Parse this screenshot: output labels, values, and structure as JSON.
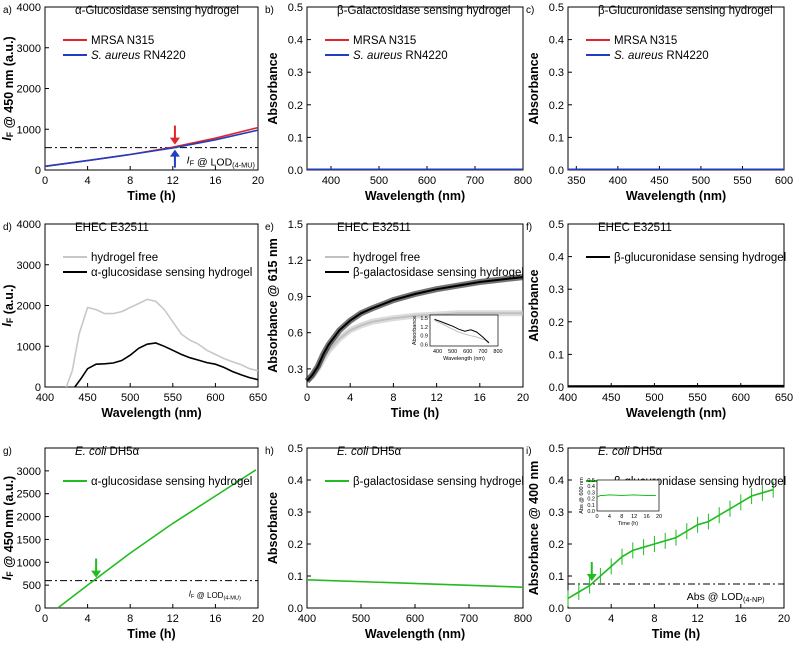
{
  "chart_data": [
    {
      "panel": "a)",
      "type": "line",
      "title": "α-Glucosidase sensing hydrogel",
      "xlabel": "Time (h)",
      "ylabel": "I_F @ 450 nm (a.u.)",
      "xlim": [
        0,
        20
      ],
      "ylim": [
        0,
        4000
      ],
      "xticks": [
        0,
        4,
        8,
        12,
        16,
        20
      ],
      "yticks": [
        0,
        1000,
        2000,
        3000,
        4000
      ],
      "legend": "top-left",
      "series": [
        {
          "name": "MRSA N315",
          "color": "#e3242b",
          "x": [
            0,
            4,
            8,
            12,
            16,
            20
          ],
          "y": [
            90,
            230,
            380,
            560,
            780,
            1040
          ]
        },
        {
          "name": "S. aureus RN4220",
          "color": "#1f3fbf",
          "x": [
            0,
            4,
            8,
            12,
            16,
            20
          ],
          "y": [
            90,
            230,
            380,
            540,
            740,
            980
          ]
        }
      ],
      "reference_line": {
        "y": 550,
        "label": "I_F @ LOD(4-MU)"
      },
      "arrow_markers": [
        {
          "x": 12.2,
          "color": "#e3242b",
          "direction": "down"
        },
        {
          "x": 12.2,
          "color": "#1f3fbf",
          "direction": "up"
        }
      ]
    },
    {
      "panel": "b)",
      "type": "line",
      "title": "β-Galactosidase sensing hydrogel",
      "xlabel": "Wavelength (nm)",
      "ylabel": "Absorbance",
      "xlim": [
        350,
        800
      ],
      "ylim": [
        0,
        0.5
      ],
      "xticks": [
        400,
        500,
        600,
        700,
        800
      ],
      "yticks": [
        0.0,
        0.1,
        0.2,
        0.3,
        0.4,
        0.5
      ],
      "legend": "top-left",
      "series": [
        {
          "name": "MRSA N315",
          "color": "#e3242b",
          "x": [
            350,
            800
          ],
          "y": [
            0.002,
            0.002
          ]
        },
        {
          "name": "S. aureus RN4220",
          "color": "#1f3fbf",
          "x": [
            350,
            800
          ],
          "y": [
            0.002,
            0.002
          ]
        }
      ]
    },
    {
      "panel": "c)",
      "type": "line",
      "title": "β-Glucuronidase sensing hydrogel",
      "xlabel": "Wavelength (nm)",
      "ylabel": "Absorbance",
      "xlim": [
        340,
        600
      ],
      "ylim": [
        0,
        0.5
      ],
      "xticks": [
        350,
        400,
        450,
        500,
        550,
        600
      ],
      "yticks": [
        0.0,
        0.1,
        0.2,
        0.3,
        0.4,
        0.5
      ],
      "legend": "top-left",
      "series": [
        {
          "name": "MRSA N315",
          "color": "#e3242b",
          "x": [
            340,
            600
          ],
          "y": [
            0.002,
            0.002
          ]
        },
        {
          "name": "S. aureus RN4220",
          "color": "#1f3fbf",
          "x": [
            340,
            600
          ],
          "y": [
            0.002,
            0.002
          ]
        }
      ]
    },
    {
      "panel": "d)",
      "type": "line",
      "title": "EHEC E32511",
      "xlabel": "Wavelength (nm)",
      "ylabel": "I_F (a.u.)",
      "xlim": [
        400,
        650
      ],
      "ylim": [
        0,
        4000
      ],
      "xticks": [
        400,
        450,
        500,
        550,
        600,
        650
      ],
      "yticks": [
        0,
        1000,
        2000,
        3000,
        4000
      ],
      "legend": "top-left",
      "series": [
        {
          "name": "hydrogel free",
          "color": "#c8c8c8",
          "x": [
            425,
            432,
            440,
            450,
            460,
            470,
            480,
            490,
            500,
            510,
            520,
            530,
            540,
            550,
            560,
            570,
            580,
            590,
            600,
            610,
            620,
            630,
            640,
            650
          ],
          "y": [
            0,
            400,
            1300,
            1950,
            1900,
            1800,
            1800,
            1850,
            1950,
            2050,
            2150,
            2100,
            1900,
            1600,
            1300,
            1150,
            1050,
            900,
            800,
            700,
            620,
            550,
            450,
            400
          ]
        },
        {
          "name": "α-glucosidase sensing hydrogel",
          "color": "#000000",
          "x": [
            435,
            442,
            450,
            460,
            470,
            480,
            490,
            500,
            510,
            520,
            530,
            540,
            550,
            560,
            570,
            580,
            590,
            600,
            610,
            620,
            630,
            640,
            650
          ],
          "y": [
            0,
            200,
            450,
            560,
            570,
            590,
            650,
            780,
            950,
            1050,
            1080,
            1000,
            900,
            800,
            720,
            660,
            600,
            560,
            480,
            380,
            300,
            230,
            180
          ]
        }
      ]
    },
    {
      "panel": "e)",
      "type": "line",
      "title": "EHEC E32511",
      "xlabel": "Time (h)",
      "ylabel": "Absorbance @ 615 nm",
      "xlim": [
        0,
        20
      ],
      "ylim": [
        0.15,
        1.5
      ],
      "xticks": [
        0,
        4,
        8,
        12,
        16,
        20
      ],
      "yticks": [
        0.3,
        0.6,
        0.9,
        1.2,
        1.5
      ],
      "legend": "top-left",
      "series": [
        {
          "name": "hydrogel free",
          "color": "#c0c0c0",
          "x": [
            0,
            0.5,
            1,
            1.5,
            2,
            3,
            4,
            5,
            6,
            8,
            10,
            12,
            14,
            16,
            18,
            20
          ],
          "y": [
            0.2,
            0.24,
            0.3,
            0.38,
            0.45,
            0.55,
            0.62,
            0.66,
            0.69,
            0.72,
            0.74,
            0.75,
            0.76,
            0.76,
            0.76,
            0.76
          ]
        },
        {
          "name": "β-galactosidase sensing hydrogel",
          "color": "#000000",
          "x": [
            0,
            0.5,
            1,
            1.5,
            2,
            3,
            4,
            5,
            6,
            8,
            10,
            12,
            14,
            16,
            18,
            20
          ],
          "y": [
            0.2,
            0.25,
            0.32,
            0.42,
            0.5,
            0.62,
            0.7,
            0.76,
            0.8,
            0.87,
            0.92,
            0.96,
            0.99,
            1.02,
            1.04,
            1.06
          ]
        }
      ],
      "inset": {
        "type": "line",
        "xlabel": "Wavelength (nm)",
        "ylabel": "Absorbance",
        "xlim": [
          350,
          800
        ],
        "ylim": [
          0.55,
          1.6
        ],
        "xticks": [
          400,
          500,
          600,
          700,
          800
        ],
        "yticks": [
          0.6,
          0.9,
          1.2,
          1.5
        ],
        "series": [
          {
            "name": "hydrogel free",
            "color": "#c0c0c0",
            "x": [
              380,
              420,
              460,
              500,
              540,
              580,
              620,
              660,
              700,
              740
            ],
            "y": [
              1.42,
              1.32,
              1.22,
              1.12,
              1.02,
              0.95,
              0.9,
              0.85,
              0.78,
              0.7
            ]
          },
          {
            "name": "β-galactosidase sensing hydrogel",
            "color": "#000000",
            "x": [
              380,
              420,
              460,
              500,
              540,
              580,
              620,
              660,
              700,
              740
            ],
            "y": [
              1.45,
              1.38,
              1.3,
              1.22,
              1.12,
              1.05,
              1.1,
              1.02,
              0.85,
              0.65
            ]
          }
        ]
      }
    },
    {
      "panel": "f)",
      "type": "line",
      "title": "EHEC E32511",
      "xlabel": "Wavelength (nm)",
      "ylabel": "Absorbance",
      "xlim": [
        400,
        650
      ],
      "ylim": [
        0,
        0.5
      ],
      "xticks": [
        400,
        450,
        500,
        550,
        600,
        650
      ],
      "yticks": [
        0.0,
        0.1,
        0.2,
        0.3,
        0.4,
        0.5
      ],
      "legend": "top-left",
      "series": [
        {
          "name": "β-glucuronidase sensing hydrogel",
          "color": "#000000",
          "x": [
            400,
            650
          ],
          "y": [
            0.003,
            0.004
          ]
        }
      ]
    },
    {
      "panel": "g)",
      "type": "line",
      "title": "E. coli DH5α",
      "xlabel": "Time (h)",
      "ylabel": "I_F @ 450 nm (a.u.)",
      "xlim": [
        0,
        20
      ],
      "ylim": [
        0,
        3500
      ],
      "xticks": [
        0,
        4,
        8,
        12,
        16,
        20
      ],
      "yticks": [
        0,
        500,
        1000,
        1500,
        2000,
        2500,
        3000
      ],
      "legend": "top-left",
      "series": [
        {
          "name": "α-glucosidase sensing hydrogel",
          "color": "#22bb22",
          "x": [
            1.2,
            4,
            8,
            12,
            16,
            19.8
          ],
          "y": [
            0,
            500,
            1200,
            1850,
            2450,
            3020
          ]
        }
      ],
      "reference_line": {
        "y": 600,
        "label": "I_F @ LOD(4-MU)"
      },
      "arrow_markers": [
        {
          "x": 4.8,
          "color": "#22bb22",
          "direction": "down"
        }
      ]
    },
    {
      "panel": "h)",
      "type": "line",
      "title": "E. coli DH5α",
      "xlabel": "Wavelength (nm)",
      "ylabel": "Absorbance",
      "xlim": [
        400,
        800
      ],
      "ylim": [
        0,
        0.5
      ],
      "xticks": [
        400,
        500,
        600,
        700,
        800
      ],
      "yticks": [
        0.0,
        0.1,
        0.2,
        0.3,
        0.4,
        0.5
      ],
      "legend": "top-left",
      "series": [
        {
          "name": "β-galactosidase sensing hydrogel",
          "color": "#22bb22",
          "x": [
            400,
            800
          ],
          "y": [
            0.088,
            0.065
          ]
        }
      ]
    },
    {
      "panel": "i)",
      "type": "line",
      "title": "E. coli DH5α",
      "xlabel": "Time (h)",
      "ylabel": "Absorbance @ 400 nm",
      "xlim": [
        0,
        20
      ],
      "ylim": [
        0,
        0.5
      ],
      "xticks": [
        0,
        4,
        8,
        12,
        16,
        20
      ],
      "yticks": [
        0.0,
        0.1,
        0.2,
        0.3,
        0.4,
        0.5
      ],
      "legend": "top-left",
      "series": [
        {
          "name": "β-glucuronidase sensing hydrogel",
          "color": "#22bb22",
          "x": [
            0,
            1,
            2,
            3,
            4,
            5,
            6,
            7,
            8,
            9,
            10,
            11,
            12,
            13,
            14,
            15,
            16,
            17,
            18,
            19
          ],
          "y": [
            0.03,
            0.05,
            0.07,
            0.1,
            0.13,
            0.16,
            0.18,
            0.19,
            0.2,
            0.21,
            0.22,
            0.24,
            0.26,
            0.27,
            0.29,
            0.31,
            0.33,
            0.35,
            0.36,
            0.37
          ]
        }
      ],
      "reference_line": {
        "y": 0.075,
        "label": "Abs @ LOD(4-NP)"
      },
      "arrow_markers": [
        {
          "x": 2.2,
          "color": "#22bb22",
          "direction": "down"
        }
      ],
      "inset": {
        "type": "line",
        "xlabel": "Time (h)",
        "ylabel": "Abs @ 600 nm",
        "xlim": [
          0,
          20
        ],
        "ylim": [
          0,
          0.5
        ],
        "xticks": [
          0,
          4,
          8,
          12,
          16,
          20
        ],
        "yticks": [
          0.0,
          0.1,
          0.2,
          0.3,
          0.4,
          0.5
        ],
        "series": [
          {
            "name": "β-glucuronidase sensing hydrogel",
            "color": "#22bb22",
            "x": [
              0,
              1,
              2,
              4,
              8,
              12,
              16,
              19
            ],
            "y": [
              0.22,
              0.25,
              0.25,
              0.26,
              0.25,
              0.26,
              0.25,
              0.25
            ]
          }
        ]
      }
    }
  ]
}
